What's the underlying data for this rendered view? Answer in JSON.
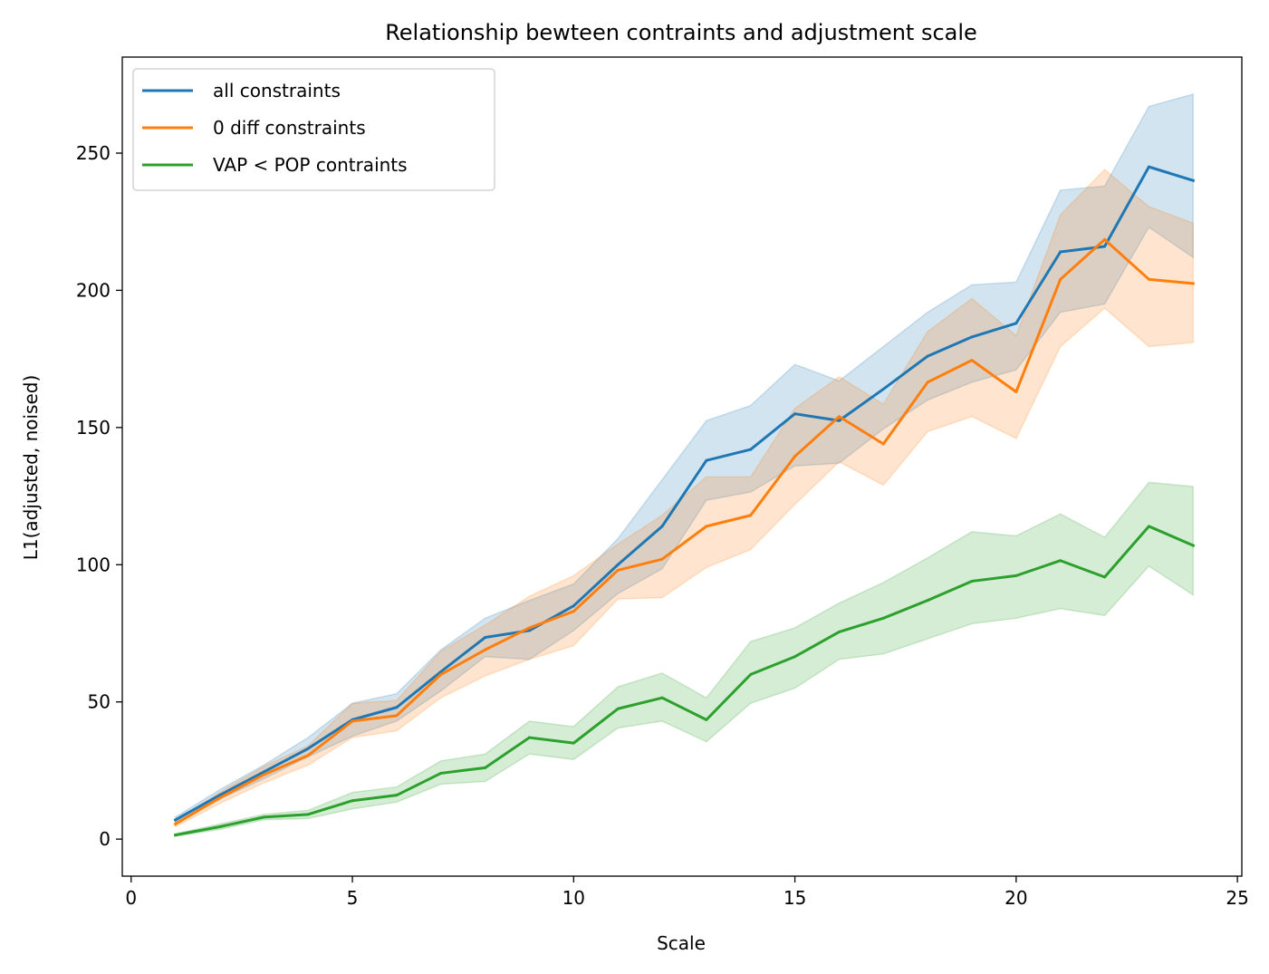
{
  "chart_data": {
    "type": "line",
    "title": "Relationship bewteen contraints and adjustment scale",
    "xlabel": "Scale",
    "ylabel": "L1(adjusted, noised)",
    "xlim": [
      -0.2,
      25.1
    ],
    "ylim": [
      -13.5,
      285
    ],
    "xticks": [
      0,
      5,
      10,
      15,
      20,
      25
    ],
    "yticks": [
      0,
      50,
      100,
      150,
      200,
      250
    ],
    "grid": false,
    "legend_position": "top-left",
    "x": [
      1,
      2,
      3,
      4,
      5,
      6,
      7,
      8,
      9,
      10,
      11,
      12,
      13,
      14,
      15,
      16,
      17,
      18,
      19,
      20,
      21,
      22,
      23,
      24
    ],
    "series": [
      {
        "name": "all constraints",
        "color": "#1f77b4",
        "values": [
          7,
          16,
          24.5,
          33,
          43.5,
          48,
          61,
          73.5,
          76,
          85,
          100,
          114,
          138,
          142,
          155,
          152.5,
          164,
          176,
          183,
          188,
          214,
          216,
          245,
          240
        ],
        "lower": [
          6,
          14.5,
          22,
          30,
          37.5,
          43,
          54,
          66.5,
          65.5,
          76,
          89.5,
          98.5,
          123.5,
          126.5,
          136,
          137,
          149.5,
          160,
          166.5,
          171,
          192,
          195,
          223,
          212
        ],
        "upper": [
          8,
          18,
          27,
          37,
          49.5,
          53,
          69,
          80.5,
          87,
          93,
          109.5,
          131,
          152.5,
          158,
          173,
          167,
          179.5,
          192,
          202,
          203,
          236.5,
          238,
          267,
          271.5
        ]
      },
      {
        "name": "0 diff constraints",
        "color": "#ff7f0e",
        "values": [
          5.5,
          15,
          23.5,
          30.5,
          43,
          45,
          60,
          69,
          77,
          83,
          98,
          102,
          114,
          118,
          139.5,
          154,
          144,
          166.5,
          174.5,
          163,
          204,
          218.5,
          204,
          202.5
        ],
        "lower": [
          4.5,
          13,
          20.5,
          27,
          37,
          39.5,
          51.5,
          59.5,
          65.5,
          70.5,
          87.5,
          88,
          99,
          105.5,
          122,
          137.5,
          129,
          148.5,
          154,
          146,
          179.5,
          193.5,
          179.5,
          181
        ],
        "upper": [
          6.5,
          17,
          26.5,
          34,
          49.5,
          50.5,
          68.5,
          78,
          88.5,
          96,
          107.5,
          118,
          132,
          132,
          157,
          168.5,
          158.5,
          185,
          197,
          183.5,
          227.5,
          244,
          230.5,
          224.5
        ]
      },
      {
        "name": "VAP < POP contraints",
        "color": "#2ca02c",
        "values": [
          1.5,
          4.5,
          8,
          9,
          14,
          16,
          24,
          26,
          37,
          35,
          47.5,
          51.5,
          43.5,
          60,
          66.5,
          75.5,
          80.5,
          87,
          94,
          96,
          101.5,
          95.5,
          114,
          107
        ],
        "lower": [
          1,
          3.5,
          7,
          7.5,
          11,
          13.5,
          20,
          21,
          31,
          29,
          40.5,
          43,
          35.5,
          49.5,
          55,
          65.5,
          67.5,
          73,
          78.5,
          80.5,
          84,
          81.5,
          99.5,
          89
        ],
        "upper": [
          2,
          5.5,
          9,
          10.5,
          17,
          19,
          28.5,
          31,
          43,
          41,
          55.5,
          60.5,
          51.5,
          72,
          77,
          86,
          93.5,
          102.5,
          112,
          110.5,
          118.5,
          110,
          130,
          128.5
        ]
      }
    ]
  }
}
